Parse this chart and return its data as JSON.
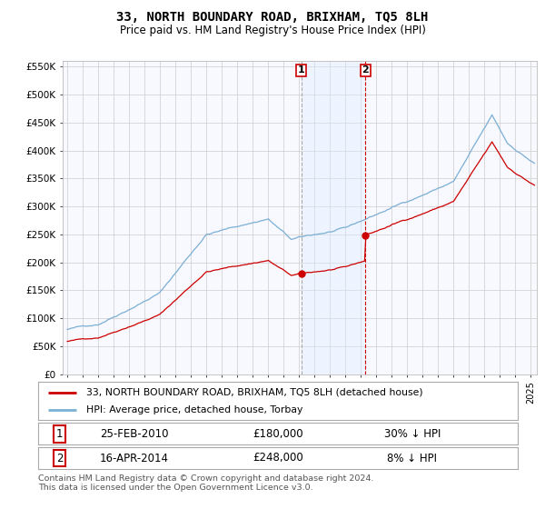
{
  "title": "33, NORTH BOUNDARY ROAD, BRIXHAM, TQ5 8LH",
  "subtitle": "Price paid vs. HM Land Registry's House Price Index (HPI)",
  "legend_line1": "33, NORTH BOUNDARY ROAD, BRIXHAM, TQ5 8LH (detached house)",
  "legend_line2": "HPI: Average price, detached house, Torbay",
  "sale1_label": "1",
  "sale1_date": "25-FEB-2010",
  "sale1_price": "£180,000",
  "sale1_hpi": "30% ↓ HPI",
  "sale2_label": "2",
  "sale2_date": "16-APR-2014",
  "sale2_price": "£248,000",
  "sale2_hpi": "8% ↓ HPI",
  "footer": "Contains HM Land Registry data © Crown copyright and database right 2024.\nThis data is licensed under the Open Government Licence v3.0.",
  "price_line_color": "#cc0000",
  "hpi_line_color": "#7bafd4",
  "sale1_year": 2010.15,
  "sale2_year": 2014.29,
  "highlight_color": "#ddeeff",
  "sale1_vline_color": "#aaaaaa",
  "sale2_vline_color": "#cc0000",
  "ylim_min": 0,
  "ylim_max": 560000,
  "yticks": [
    0,
    50000,
    100000,
    150000,
    200000,
    250000,
    300000,
    350000,
    400000,
    450000,
    500000,
    550000
  ],
  "background_color": "#ffffff",
  "grid_color": "#cccccc",
  "chart_bg": "#f8f8ff"
}
